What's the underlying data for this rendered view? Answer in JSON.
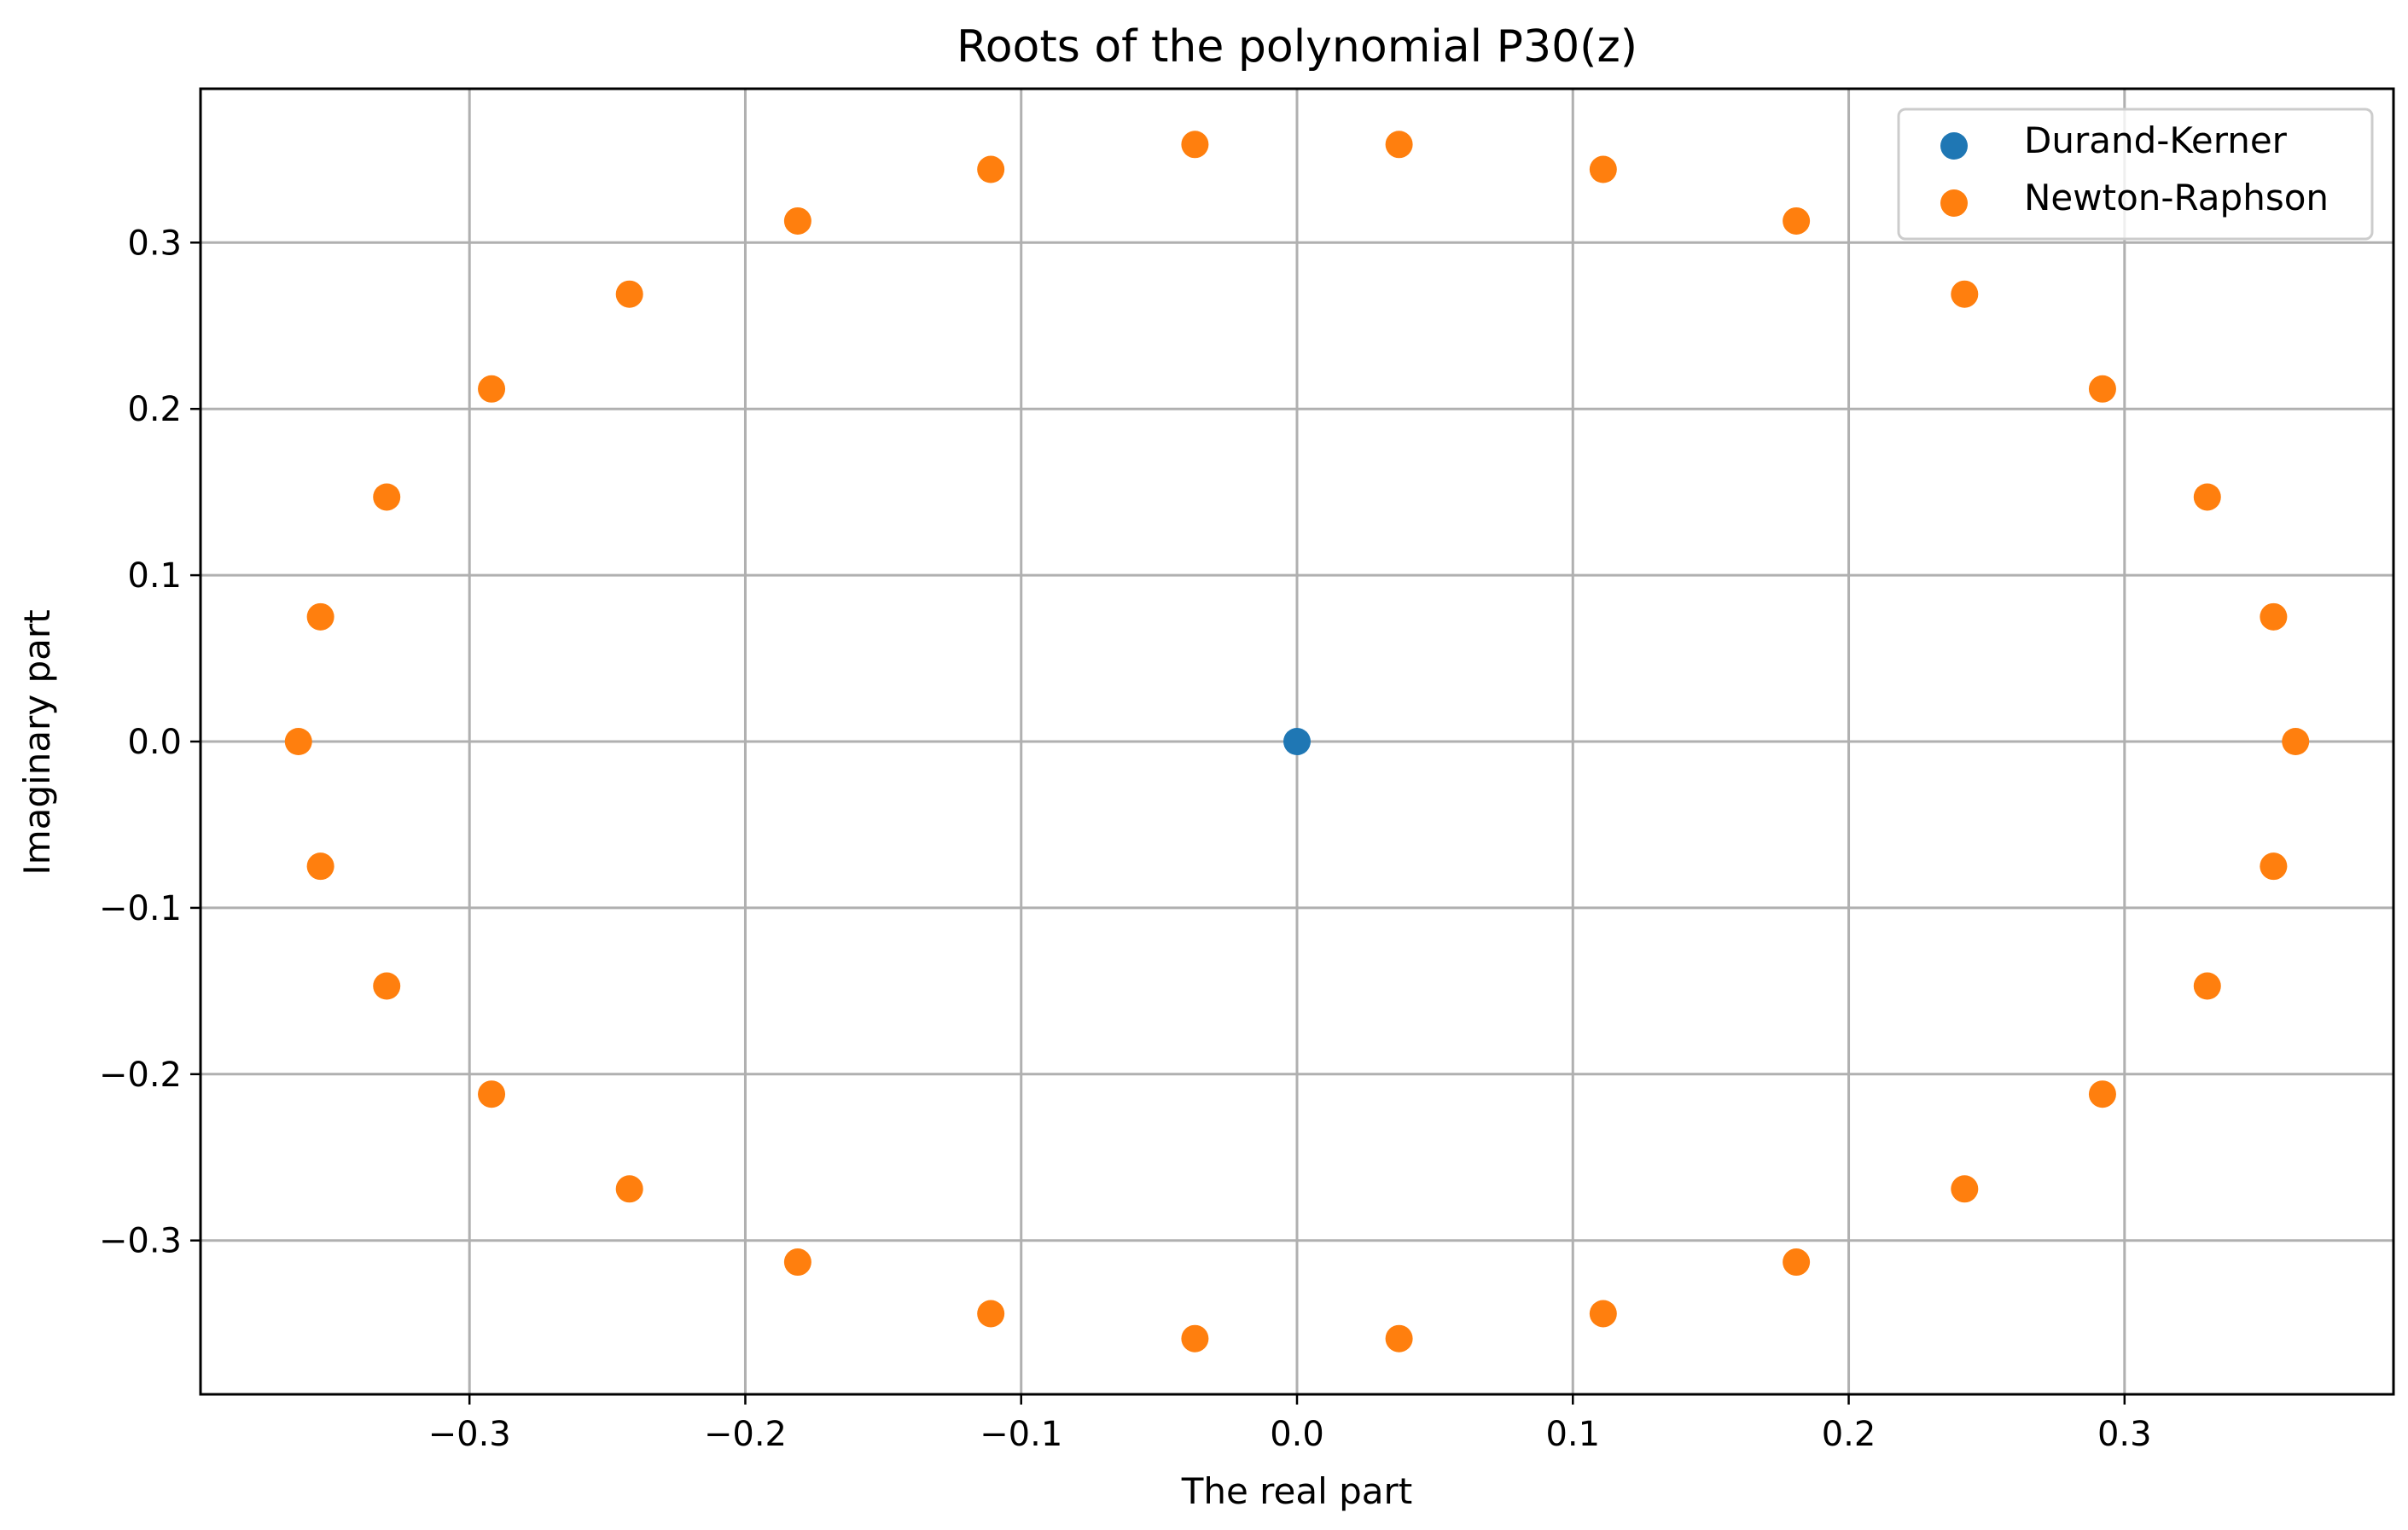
{
  "chart_data": {
    "type": "scatter",
    "title": "Roots of the polynomial P30(z)",
    "xlabel": "The real part",
    "ylabel": "Imaginary part",
    "xlim": [
      -0.3975,
      0.3975
    ],
    "ylim": [
      -0.3925,
      0.3925
    ],
    "grid": true,
    "legend_position": "top-right",
    "x_ticks": [
      -0.3,
      -0.2,
      -0.1,
      0.0,
      0.1,
      0.2,
      0.3
    ],
    "x_tick_labels": [
      "−0.3",
      "−0.2",
      "−0.1",
      "0.0",
      "0.1",
      "0.2",
      "0.3"
    ],
    "y_ticks": [
      -0.3,
      -0.2,
      -0.1,
      0.0,
      0.1,
      0.2,
      0.3
    ],
    "y_tick_labels": [
      "−0.3",
      "−0.2",
      "−0.1",
      "0.0",
      "0.1",
      "0.2",
      "0.3"
    ],
    "series": [
      {
        "name": "Durand-Kerner",
        "color": "#1f77b4",
        "points": [
          [
            0.0,
            0.0
          ]
        ]
      },
      {
        "name": "Newton-Raphson",
        "color": "#ff7f0e",
        "points": [
          [
            0.362,
            0.0
          ],
          [
            0.354,
            0.075
          ],
          [
            0.33,
            0.147
          ],
          [
            0.292,
            0.212
          ],
          [
            0.242,
            0.269
          ],
          [
            0.181,
            0.313
          ],
          [
            0.111,
            0.344
          ],
          [
            0.037,
            0.359
          ],
          [
            -0.037,
            0.359
          ],
          [
            -0.111,
            0.344
          ],
          [
            -0.181,
            0.313
          ],
          [
            -0.242,
            0.269
          ],
          [
            -0.292,
            0.212
          ],
          [
            -0.33,
            0.147
          ],
          [
            -0.354,
            0.075
          ],
          [
            -0.362,
            0.0
          ],
          [
            -0.354,
            -0.075
          ],
          [
            -0.33,
            -0.147
          ],
          [
            -0.292,
            -0.212
          ],
          [
            -0.242,
            -0.269
          ],
          [
            -0.181,
            -0.313
          ],
          [
            -0.111,
            -0.344
          ],
          [
            -0.037,
            -0.359
          ],
          [
            0.037,
            -0.359
          ],
          [
            0.111,
            -0.344
          ],
          [
            0.181,
            -0.313
          ],
          [
            0.242,
            -0.269
          ],
          [
            0.292,
            -0.212
          ],
          [
            0.33,
            -0.147
          ],
          [
            0.354,
            -0.075
          ]
        ]
      }
    ]
  }
}
